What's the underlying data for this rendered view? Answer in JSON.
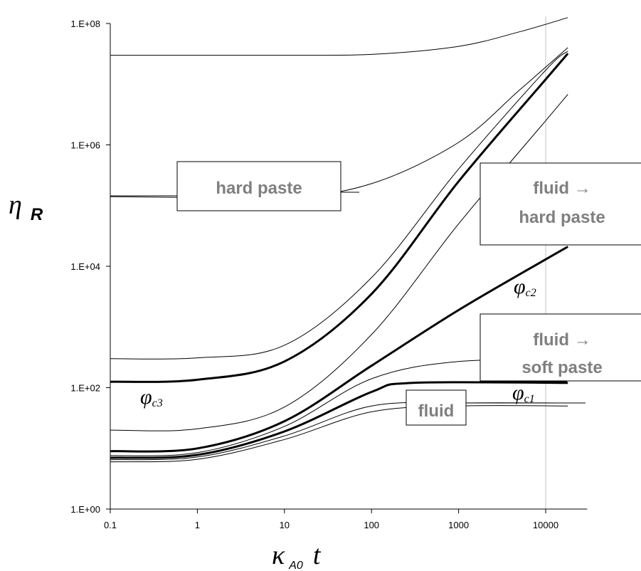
{
  "chart_data": {
    "type": "line",
    "title": "",
    "x_scale": "log",
    "y_scale": "log",
    "xlim": [
      0.1,
      30000
    ],
    "ylim": [
      1,
      100000000
    ],
    "grid": false,
    "xlabel": {
      "symbol": "κ",
      "subscript": "A0",
      "variable": "t"
    },
    "ylabel": {
      "symbol": "η",
      "subscript": "R"
    },
    "x_ticks": [
      {
        "value": 0.1,
        "label": "0.1"
      },
      {
        "value": 1,
        "label": "1"
      },
      {
        "value": 10,
        "label": "10"
      },
      {
        "value": 100,
        "label": "100"
      },
      {
        "value": 1000,
        "label": "1000"
      },
      {
        "value": 10000,
        "label": "10000"
      }
    ],
    "y_ticks": [
      {
        "value": 1,
        "label": "1.E+00"
      },
      {
        "value": 100,
        "label": "1.E+02"
      },
      {
        "value": 10000,
        "label": "1.E+04"
      },
      {
        "value": 1000000,
        "label": "1.E+06"
      },
      {
        "value": 100000000,
        "label": "1.E+08"
      }
    ],
    "series": [
      {
        "weight": "thin",
        "x": [
          0.1,
          10,
          100,
          1000,
          5000,
          18000
        ],
        "y": [
          30000000,
          30000000,
          31000000,
          42000000,
          73000000,
          125000000
        ]
      },
      {
        "weight": "thin",
        "x": [
          0.1,
          10,
          100,
          1000,
          5000,
          18000
        ],
        "y": [
          140000,
          140000,
          230000,
          1100000,
          8000000,
          40000000
        ]
      },
      {
        "weight": "thin",
        "x": [
          0.1,
          1,
          10,
          100,
          1000,
          10000,
          18000
        ],
        "y": [
          300,
          310,
          500,
          6500,
          400000,
          17000000,
          35000000
        ]
      },
      {
        "weight": "thick",
        "x": [
          0.1,
          1,
          10,
          100,
          1000,
          10000,
          18000
        ],
        "y": [
          125,
          135,
          270,
          3500,
          250000,
          12000000,
          32000000
        ]
      },
      {
        "weight": "thin",
        "x": [
          0.1,
          1,
          10,
          100,
          1000,
          10000,
          18000
        ],
        "y": [
          20,
          21,
          48,
          750,
          50000,
          2500000,
          6800000
        ]
      },
      {
        "weight": "thick",
        "x": [
          0.1,
          1,
          10,
          100,
          1000,
          10000,
          18000
        ],
        "y": [
          9,
          10,
          28,
          230,
          1900,
          13000,
          21000
        ]
      },
      {
        "weight": "thin",
        "x": [
          0.1,
          1,
          10,
          100,
          1000,
          18000
        ],
        "y": [
          7.6,
          8.5,
          23,
          140,
          270,
          280
        ]
      },
      {
        "weight": "thick",
        "x": [
          0.1,
          1,
          10,
          100,
          300,
          18000
        ],
        "y": [
          7,
          7.8,
          19,
          85,
          120,
          120
        ]
      },
      {
        "weight": "thin",
        "x": [
          0.1,
          1,
          10,
          100,
          1000,
          18000
        ],
        "y": [
          6.5,
          7.2,
          16,
          50,
          56,
          56
        ]
      },
      {
        "weight": "thin",
        "x": [
          0.1,
          1,
          10,
          100,
          1000,
          18000
        ],
        "y": [
          6,
          6.6,
          14,
          40,
          50,
          50
        ]
      }
    ],
    "annotations": [
      {
        "kind": "box",
        "lines": [
          "hard paste"
        ]
      },
      {
        "kind": "box",
        "lines": [
          "fluid →",
          "hard paste"
        ]
      },
      {
        "kind": "box",
        "lines": [
          "fluid →",
          "soft paste"
        ]
      },
      {
        "kind": "box",
        "lines": [
          "fluid"
        ]
      },
      {
        "kind": "label",
        "symbol": "φ",
        "subscript": "c3"
      },
      {
        "kind": "label",
        "symbol": "φ",
        "subscript": "c2"
      },
      {
        "kind": "label",
        "symbol": "φ",
        "subscript": "c1"
      }
    ],
    "colors": {
      "line": "#000000",
      "box_text": "#7f7f7f",
      "axis": "#000000",
      "reference_line": "#c0c0c0"
    }
  }
}
